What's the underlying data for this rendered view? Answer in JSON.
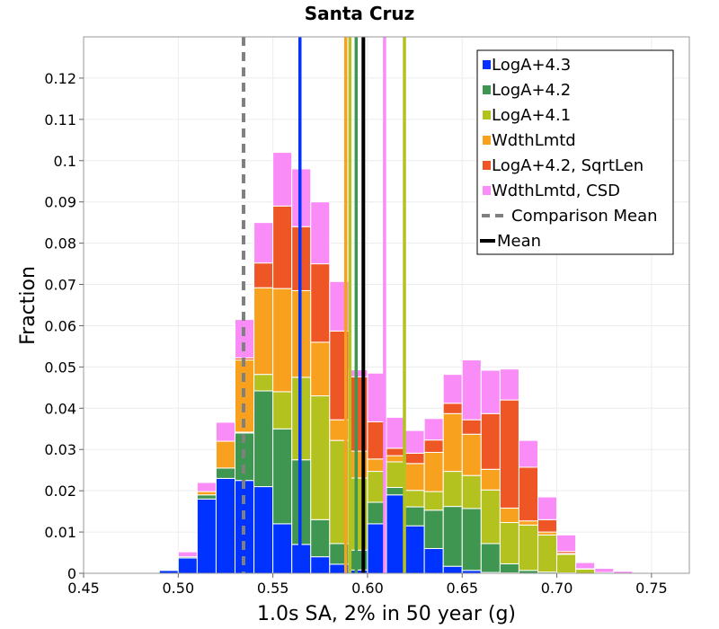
{
  "chart_data": {
    "type": "bar",
    "stacked": true,
    "title": "Santa Cruz",
    "xlabel": "1.0s SA, 2% in 50 year (g)",
    "ylabel": "Fraction",
    "xlim": [
      0.45,
      0.77
    ],
    "ylim": [
      0,
      0.13
    ],
    "xticks": [
      0.45,
      0.5,
      0.55,
      0.6,
      0.65,
      0.7,
      0.75
    ],
    "xtick_labels": [
      "0.45",
      "0.50",
      "0.55",
      "0.60",
      "0.65",
      "0.70",
      "0.75"
    ],
    "yticks": [
      0,
      0.01,
      0.02,
      0.03,
      0.04,
      0.05,
      0.06,
      0.07,
      0.08,
      0.09,
      0.1,
      0.11,
      0.12
    ],
    "ytick_labels": [
      "0",
      "0.01",
      "0.02",
      "0.03",
      "0.04",
      "0.05",
      "0.06",
      "0.07",
      "0.08",
      "0.09",
      "0.1",
      "0.11",
      "0.12"
    ],
    "bin_width": 0.01,
    "bins": [
      0.48,
      0.49,
      0.5,
      0.51,
      0.52,
      0.53,
      0.54,
      0.55,
      0.56,
      0.57,
      0.58,
      0.59,
      0.6,
      0.61,
      0.62,
      0.63,
      0.64,
      0.65,
      0.66,
      0.67,
      0.68,
      0.69,
      0.7,
      0.71,
      0.72,
      0.73,
      0.74
    ],
    "series": [
      {
        "name": "LogA+4.3",
        "color": "#0033ff",
        "values": [
          0.0001,
          0.0007,
          0.0037,
          0.018,
          0.023,
          0.0225,
          0.021,
          0.012,
          0.007,
          0.004,
          0.0022,
          0.0008,
          0.012,
          0.019,
          0.0115,
          0.006,
          0.0017,
          0.0007,
          0.0002,
          0.0001,
          0,
          0,
          0,
          0,
          0,
          0,
          0
        ]
      },
      {
        "name": "LogA+4.2",
        "color": "#3e9650",
        "values": [
          0,
          0,
          0.0003,
          0.001,
          0.0025,
          0.0115,
          0.0232,
          0.023,
          0.0205,
          0.009,
          0.005,
          0.0048,
          0.0052,
          0.0018,
          0.0046,
          0.0093,
          0.0145,
          0.015,
          0.007,
          0.0022,
          0.0007,
          0.0003,
          0.0001,
          0,
          0,
          0,
          0
        ]
      },
      {
        "name": "LogA+4.1",
        "color": "#b3c21f",
        "values": [
          0,
          0,
          0,
          0,
          0,
          0.0002,
          0.004,
          0.009,
          0.02,
          0.03,
          0.025,
          0.0175,
          0.0075,
          0.0062,
          0.004,
          0.0045,
          0.0085,
          0.008,
          0.013,
          0.01,
          0.011,
          0.009,
          0.0045,
          0.001,
          0.0002,
          0,
          0
        ]
      },
      {
        "name": "WdthLmtd",
        "color": "#f7a11f",
        "values": [
          0,
          0,
          0,
          0.0008,
          0.0065,
          0.0175,
          0.021,
          0.025,
          0.021,
          0.013,
          0.005,
          0.0065,
          0.003,
          0.0015,
          0.0065,
          0.0095,
          0.014,
          0.01,
          0.005,
          0.0035,
          0.001,
          0.0007,
          0.0002,
          0,
          0,
          0,
          0
        ]
      },
      {
        "name": "LogA+4.2, SqrtLen",
        "color": "#ef5626",
        "values": [
          0,
          0,
          0,
          0,
          0,
          0.0005,
          0.006,
          0.02,
          0.0155,
          0.019,
          0.0215,
          0.018,
          0.009,
          0.0018,
          0.0025,
          0.003,
          0.0025,
          0.0035,
          0.0135,
          0.0262,
          0.013,
          0.003,
          0.0005,
          0.0001,
          0,
          0,
          0
        ]
      },
      {
        "name": "WdthLmtd, CSD",
        "color": "#f98cf7",
        "values": [
          0,
          0.0002,
          0.0012,
          0.0022,
          0.0046,
          0.0093,
          0.0098,
          0.013,
          0.014,
          0.015,
          0.012,
          0.0017,
          0.0118,
          0.0075,
          0.0055,
          0.0052,
          0.007,
          0.0145,
          0.0105,
          0.0075,
          0.0065,
          0.0055,
          0.004,
          0.0015,
          0.001,
          0.0005,
          0.0001
        ]
      }
    ],
    "vlines": [
      {
        "x": 0.5643,
        "color": "#0033ff"
      },
      {
        "x": 0.5885,
        "color": "#f7a11f"
      },
      {
        "x": 0.5907,
        "color": "#b3c21f"
      },
      {
        "x": 0.594,
        "color": "#3e9650"
      },
      {
        "x": 0.609,
        "color": "#f98cf7"
      },
      {
        "x": 0.6195,
        "color": "#b3c21f"
      }
    ],
    "comparison_mean": 0.5345,
    "mean": 0.5978,
    "legend_position": "top-right",
    "legend": [
      {
        "label": "LogA+4.3",
        "kind": "square",
        "color": "#0033ff"
      },
      {
        "label": "LogA+4.2",
        "kind": "square",
        "color": "#3e9650"
      },
      {
        "label": "LogA+4.1",
        "kind": "square",
        "color": "#b3c21f"
      },
      {
        "label": "WdthLmtd",
        "kind": "square",
        "color": "#f7a11f"
      },
      {
        "label": "LogA+4.2, SqrtLen",
        "kind": "square",
        "color": "#ef5626"
      },
      {
        "label": "WdthLmtd, CSD",
        "kind": "square",
        "color": "#f98cf7"
      },
      {
        "label": "Comparison Mean",
        "kind": "dashed",
        "color": "#808080"
      },
      {
        "label": "Mean",
        "kind": "line",
        "color": "#000000"
      }
    ],
    "grid": true
  }
}
